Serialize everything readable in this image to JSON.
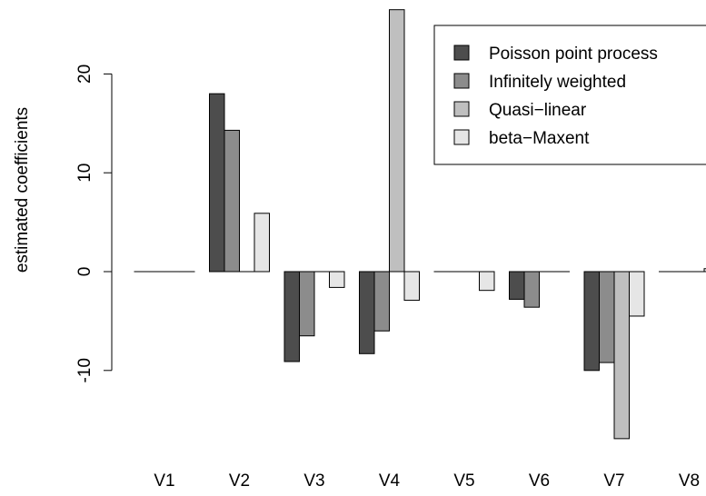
{
  "chart_data": {
    "type": "bar",
    "title": "",
    "xlabel": "",
    "ylabel": "estimated coefficients",
    "ylim": [
      -18.5,
      26.5
    ],
    "yticks": [
      "-10",
      "0",
      "10",
      "20"
    ],
    "categories": [
      "V1",
      "V2",
      "V3",
      "V4",
      "V5",
      "V6",
      "V7",
      "V8"
    ],
    "series": [
      {
        "name": "Poisson point process",
        "color": "#4d4d4d",
        "values": [
          0,
          18.0,
          -9.1,
          -8.3,
          0,
          -2.8,
          -10.0,
          0
        ]
      },
      {
        "name": "Infinitely weighted",
        "color": "#8c8c8c",
        "values": [
          0,
          14.3,
          -6.5,
          -6.0,
          0,
          -3.6,
          -9.2,
          0
        ]
      },
      {
        "name": "Quasi-linear",
        "color": "#bfbfbf",
        "values": [
          0,
          0,
          0,
          26.5,
          0,
          0,
          -16.9,
          0
        ]
      },
      {
        "name": "beta-Maxent",
        "color": "#e6e6e6",
        "values": [
          0,
          5.9,
          -1.6,
          -2.9,
          -1.9,
          0,
          -4.5,
          0.3
        ]
      }
    ],
    "legend_labels": [
      "Poisson point process",
      "Infinitely weighted",
      "Quasi−linear",
      "beta−Maxent"
    ],
    "legend_position": "top-right",
    "grid": false
  }
}
